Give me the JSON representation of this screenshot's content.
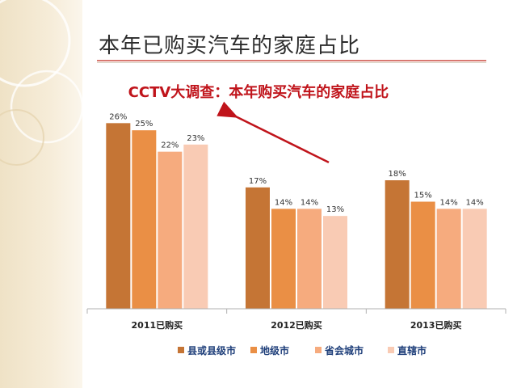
{
  "slide": {
    "title": "本年已购买汽车的家庭占比"
  },
  "chart_data": {
    "type": "bar",
    "title": "CCTV大调查：本年购买汽车的家庭占比",
    "categories": [
      "2011已购买",
      "2012已购买",
      "2013已购买"
    ],
    "series": [
      {
        "name": "县或县级市",
        "values": [
          26,
          17,
          18
        ],
        "color": "#c57535"
      },
      {
        "name": "地级市",
        "values": [
          25,
          14,
          15
        ],
        "color": "#ea8f45"
      },
      {
        "name": "省会城市",
        "values": [
          22,
          14,
          14
        ],
        "color": "#f6ab7e"
      },
      {
        "name": "直辖市",
        "values": [
          23,
          13,
          14
        ],
        "color": "#f9cbb4"
      }
    ],
    "value_suffix": "%",
    "ylim": [
      0,
      30
    ],
    "grid": false,
    "legend": "bottom",
    "annotation": {
      "type": "arrow",
      "color": "#c0141b",
      "from_category": "2012已购买",
      "to_category": "2011已购买"
    }
  }
}
